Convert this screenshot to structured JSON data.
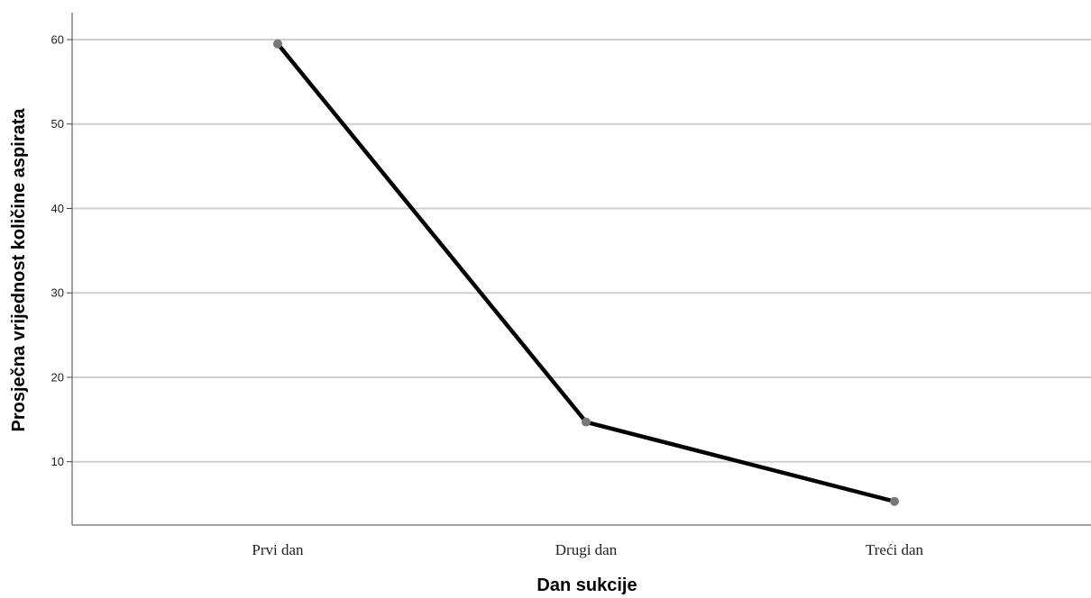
{
  "chart_data": {
    "type": "line",
    "title": "",
    "xlabel": "Dan sukcije",
    "ylabel": "Prosječna vrijednost količine aspirata",
    "categories": [
      "Prvi dan",
      "Drugi dan",
      "Treći dan"
    ],
    "series": [
      {
        "values": [
          59.5,
          14.7,
          5.3
        ]
      }
    ],
    "yticks": [
      10,
      20,
      30,
      40,
      50,
      60
    ],
    "ylim": [
      2.5,
      63.2
    ],
    "grid": true,
    "legend": "none",
    "colors": {
      "line": "#000000",
      "marker": "#777777",
      "grid": "#cfcfcf"
    }
  }
}
